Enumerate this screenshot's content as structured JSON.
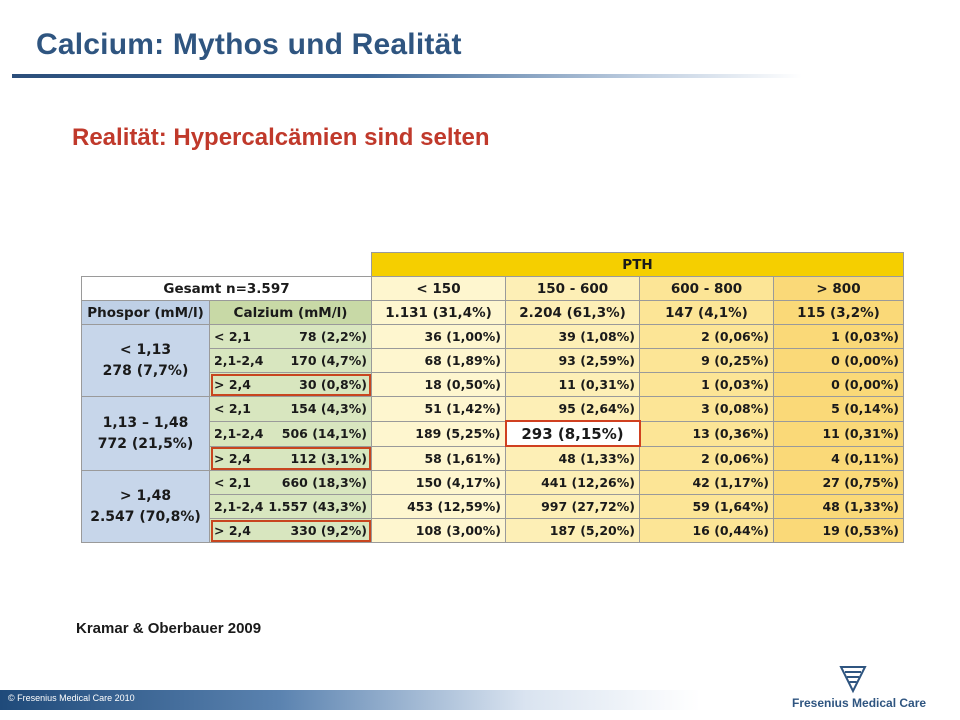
{
  "slide": {
    "title": "Calcium: Mythos und Realität",
    "subtitle": "Realität: Hypercalcämien sind selten",
    "citation": "Kramar & Oberbauer 2009"
  },
  "table": {
    "pth_label": "PTH",
    "total_label": "Gesamt n=3.597",
    "pth_columns": [
      "< 150",
      "150 - 600",
      "600 - 800",
      "> 800"
    ],
    "phosphor_header": "Phospor (mM/l)",
    "calcium_header": "Calzium (mM/l)",
    "pth_totals": [
      "1.131 (31,4%)",
      "2.204 (61,3%)",
      "147 (4,1%)",
      "115 (3,2%)"
    ],
    "groups": [
      {
        "range": "< 1,13",
        "count": "278 (7,7%)",
        "rows": [
          {
            "calcium_range": "< 2,1",
            "calcium_count": "78 (2,2%)",
            "values": [
              "36 (1,00%)",
              "39 (1,08%)",
              "2 (0,06%)",
              "1 (0,03%)"
            ]
          },
          {
            "calcium_range": "2,1-2,4",
            "calcium_count": "170 (4,7%)",
            "values": [
              "68 (1,89%)",
              "93 (2,59%)",
              "9 (0,25%)",
              "0 (0,00%)"
            ]
          },
          {
            "calcium_range": "> 2,4",
            "calcium_count": "30 (0,8%)",
            "values": [
              "18 (0,50%)",
              "11 (0,31%)",
              "1 (0,03%)",
              "0 (0,00%)"
            ]
          }
        ]
      },
      {
        "range": "1,13 – 1,48",
        "count": "772 (21,5%)",
        "rows": [
          {
            "calcium_range": "< 2,1",
            "calcium_count": "154 (4,3%)",
            "values": [
              "51 (1,42%)",
              "95 (2,64%)",
              "3 (0,08%)",
              "5 (0,14%)"
            ]
          },
          {
            "calcium_range": "2,1-2,4",
            "calcium_count": "506 (14,1%)",
            "values": [
              "189 (5,25%)",
              "293 (8,15%)",
              "13 (0,36%)",
              "11 (0,31%)"
            ]
          },
          {
            "calcium_range": "> 2,4",
            "calcium_count": "112 (3,1%)",
            "values": [
              "58 (1,61%)",
              "48 (1,33%)",
              "2 (0,06%)",
              "4 (0,11%)"
            ]
          }
        ]
      },
      {
        "range": "> 1,48",
        "count": "2.547 (70,8%)",
        "rows": [
          {
            "calcium_range": "< 2,1",
            "calcium_count": "660 (18,3%)",
            "values": [
              "150 (4,17%)",
              "441 (12,26%)",
              "42 (1,17%)",
              "27 (0,75%)"
            ]
          },
          {
            "calcium_range": "2,1-2,4",
            "calcium_count": "1.557 (43,3%)",
            "values": [
              "453 (12,59%)",
              "997 (27,72%)",
              "59 (1,64%)",
              "48 (1,33%)"
            ]
          },
          {
            "calcium_range": "> 2,4",
            "calcium_count": "330 (9,2%)",
            "values": [
              "108 (3,00%)",
              "187 (5,20%)",
              "16 (0,44%)",
              "19 (0,53%)"
            ]
          }
        ]
      }
    ]
  },
  "footer": {
    "copyright": "© Fresenius Medical Care 2010",
    "logo_text": "Fresenius Medical Care"
  },
  "colors": {
    "title": "#2f5580",
    "subtitle": "#c0392b",
    "pth_header": "#f5cf00",
    "phosphor_cell": "#c7d6ea",
    "calcium_cell": "#d8e6bf",
    "highlight_border": "#c8451f"
  }
}
